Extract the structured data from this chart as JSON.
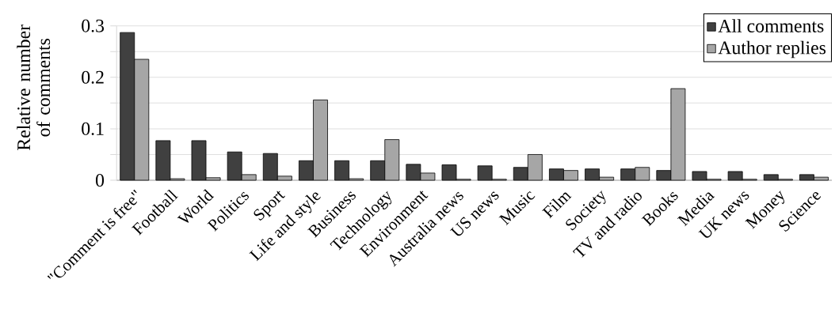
{
  "chart_data": {
    "type": "bar",
    "ylabel": "Relative number of comments",
    "categories": [
      "\"Comment is free\"",
      "Football",
      "World",
      "Politics",
      "Sport",
      "Life and style",
      "Business",
      "Technology",
      "Environment",
      "Australia news",
      "US news",
      "Music",
      "Film",
      "Society",
      "TV and radio",
      "Books",
      "Media",
      "UK news",
      "Money",
      "Science"
    ],
    "series": [
      {
        "name": "All comments",
        "color": "#404040",
        "values": [
          0.287,
          0.077,
          0.077,
          0.055,
          0.052,
          0.038,
          0.038,
          0.038,
          0.031,
          0.03,
          0.028,
          0.025,
          0.022,
          0.022,
          0.022,
          0.019,
          0.017,
          0.017,
          0.011,
          0.011
        ]
      },
      {
        "name": "Author replies",
        "color": "#a6a6a6",
        "values": [
          0.235,
          0.003,
          0.005,
          0.011,
          0.008,
          0.156,
          0.003,
          0.079,
          0.014,
          0.002,
          0.002,
          0.05,
          0.019,
          0.006,
          0.025,
          0.178,
          0.002,
          0.002,
          0.002,
          0.006
        ]
      }
    ],
    "ylim": [
      0,
      0.3
    ],
    "yticks": [
      0,
      {
        "value": 0.05,
        "label": null
      },
      0.1,
      {
        "value": 0.15,
        "label": null
      },
      0.2,
      {
        "value": 0.25,
        "label": null
      },
      0.3
    ],
    "grid": "y",
    "legend": "top right"
  }
}
